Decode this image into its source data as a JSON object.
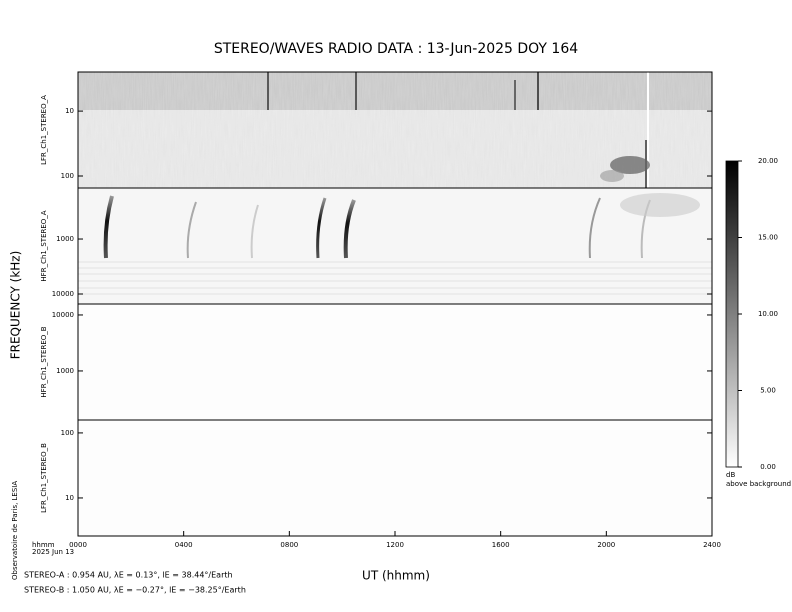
{
  "chart_data": {
    "type": "spectrogram",
    "title": "STEREO/WAVES  RADIO  DATA : 13-Jun-2025  DOY 164",
    "y_label": "FREQUENCY (kHz)",
    "x_label": "UT (hhmm)",
    "xlim": [
      0,
      24
    ],
    "xticks": [
      {
        "value": 0,
        "label": "0000"
      },
      {
        "value": 4,
        "label": "0400"
      },
      {
        "value": 8,
        "label": "0800"
      },
      {
        "value": 12,
        "label": "1200"
      },
      {
        "value": 16,
        "label": "1600"
      },
      {
        "value": 20,
        "label": "2000"
      },
      {
        "value": 24,
        "label": "2400"
      }
    ],
    "log_scale": true,
    "panels": [
      {
        "name": "LFR_Ch1_STEREO_A",
        "ylim": [
          2.5,
          153
        ],
        "y_inverted": true,
        "yticks": [
          10,
          100
        ]
      },
      {
        "name": "HFR_Ch1_STEREO_A",
        "ylim": [
          118,
          15200
        ],
        "y_inverted": true,
        "yticks": [
          1000,
          10000
        ]
      },
      {
        "name": "HFR_Ch1_STEREO_B",
        "ylim": [
          133,
          15700
        ],
        "y_inverted": false,
        "yticks": [
          1000,
          10000
        ]
      },
      {
        "name": "LFR_Ch1_STEREO_B",
        "ylim": [
          2.6,
          158
        ],
        "y_inverted": false,
        "yticks": [
          10,
          100
        ]
      }
    ],
    "colorbar": {
      "zlim": [
        0,
        20
      ],
      "ticks": [
        {
          "value": 0,
          "label": "0.00"
        },
        {
          "value": 5,
          "label": "5.00"
        },
        {
          "value": 10,
          "label": "10.00"
        },
        {
          "value": 15,
          "label": "15.00"
        },
        {
          "value": 20,
          "label": "20.00"
        }
      ],
      "unit": "dB",
      "label": "above background"
    },
    "time_unit": "hhmm",
    "date": "2025 Jun 13",
    "credit": "Observatoire de Paris, LESIA",
    "notes": [
      "STEREO-A : 0.954 AU, λE = 0.13°, lE = 38.44°/Earth",
      "STEREO-B : 1.050 AU, λE = −0.27°, lE = −38.25°/Earth"
    ]
  }
}
